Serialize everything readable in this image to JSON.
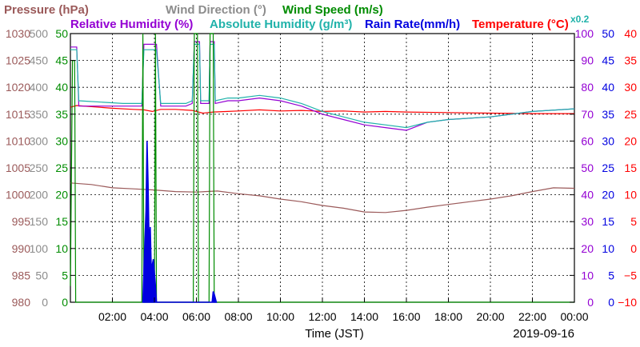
{
  "chart_data": {
    "type": "line",
    "date_label": "2019-09-16",
    "xlabel": "Time (JST)",
    "legend": [
      {
        "text": "Pressure (hPa)",
        "color": "#9b5a5a"
      },
      {
        "text": "Wind Direction (°)",
        "color": "#8c8c8c"
      },
      {
        "text": "Wind Speed (m/s)",
        "color": "#008c00"
      },
      {
        "text": "Relative Humidity (%)",
        "color": "#9400d3"
      },
      {
        "text": "Absolute Humidity (g/m³)",
        "color": "#20b2aa"
      },
      {
        "text": "Rain Rate(mm/h)",
        "color": "#0000e0"
      },
      {
        "text": "Temperature (°C)",
        "color": "#ff0000"
      },
      {
        "text": "x0.2",
        "color": "#20b2aa"
      }
    ],
    "x_ticks": [
      "02:00",
      "04:00",
      "06:00",
      "08:00",
      "10:00",
      "12:00",
      "14:00",
      "16:00",
      "18:00",
      "20:00",
      "22:00",
      "00:00"
    ],
    "x_tick_hours": [
      2,
      4,
      6,
      8,
      10,
      12,
      14,
      16,
      18,
      20,
      22,
      24
    ],
    "xlim": [
      0,
      24
    ],
    "axes": {
      "pressure": {
        "ticks": [
          "1030",
          "1025",
          "1020",
          "1015",
          "1010",
          "1005",
          "1000",
          "995",
          "990",
          "985",
          "980"
        ],
        "ylim": [
          980,
          1030
        ],
        "color": "#9b5a5a"
      },
      "wind_direction": {
        "ticks": [
          "500",
          "450",
          "400",
          "350",
          "300",
          "250",
          "200",
          "150",
          "100",
          "50",
          "0"
        ],
        "ylim": [
          0,
          500
        ],
        "color": "#8c8c8c"
      },
      "wind_speed": {
        "ticks": [
          "50",
          "45",
          "40",
          "35",
          "30",
          "25",
          "20",
          "15",
          "10",
          "5",
          "0"
        ],
        "ylim": [
          0,
          50
        ],
        "color": "#008c00"
      },
      "humidity": {
        "ticks": [
          "100",
          "90",
          "80",
          "70",
          "60",
          "50",
          "40",
          "30",
          "20",
          "10",
          "0"
        ],
        "ylim": [
          0,
          100
        ],
        "color": "#9400d3"
      },
      "rain_rate": {
        "ticks": [
          "50",
          "45",
          "40",
          "35",
          "30",
          "25",
          "20",
          "15",
          "10",
          "5",
          "0"
        ],
        "ylim": [
          0,
          50
        ],
        "color": "#0000e0"
      },
      "temperature": {
        "ticks": [
          "40",
          "35",
          "30",
          "25",
          "20",
          "15",
          "10",
          "5",
          "0",
          "−5",
          "−10"
        ],
        "ylim": [
          -10,
          40
        ],
        "color": "#ff0000"
      }
    },
    "series": [
      {
        "key": "temperature",
        "color": "#ff0000",
        "axis": "temperature",
        "points": [
          [
            0,
            26.3
          ],
          [
            0.3,
            26.6
          ],
          [
            1.0,
            26.4
          ],
          [
            2.0,
            26.1
          ],
          [
            3.0,
            25.9
          ],
          [
            3.5,
            25.8
          ],
          [
            3.9,
            25.5
          ],
          [
            4.3,
            25.9
          ],
          [
            5.0,
            25.9
          ],
          [
            5.8,
            25.7
          ],
          [
            6.3,
            25.2
          ],
          [
            6.8,
            25.4
          ],
          [
            7.5,
            25.5
          ],
          [
            8,
            25.6
          ],
          [
            9,
            25.8
          ],
          [
            10,
            25.6
          ],
          [
            11,
            25.7
          ],
          [
            12,
            25.5
          ],
          [
            13,
            25.6
          ],
          [
            14,
            25.4
          ],
          [
            15,
            25.5
          ],
          [
            16,
            25.4
          ],
          [
            18,
            25.3
          ],
          [
            20,
            25.2
          ],
          [
            22,
            25.1
          ],
          [
            24,
            25.1
          ]
        ]
      },
      {
        "key": "pressure",
        "color": "#9b5a5a",
        "axis": "pressure",
        "points": [
          [
            0,
            1002.2
          ],
          [
            1,
            1001.9
          ],
          [
            2,
            1001.3
          ],
          [
            3,
            1001.1
          ],
          [
            4,
            1000.9
          ],
          [
            5,
            1000.6
          ],
          [
            6,
            1000.5
          ],
          [
            7,
            1000.7
          ],
          [
            8,
            1000.2
          ],
          [
            9,
            999.8
          ],
          [
            10,
            999.2
          ],
          [
            11,
            998.7
          ],
          [
            12,
            998.0
          ],
          [
            13,
            997.5
          ],
          [
            14,
            996.8
          ],
          [
            15,
            996.7
          ],
          [
            16,
            997.1
          ],
          [
            17,
            997.7
          ],
          [
            18,
            998.2
          ],
          [
            19,
            998.7
          ],
          [
            20,
            999.2
          ],
          [
            21,
            999.8
          ],
          [
            22,
            1000.6
          ],
          [
            23,
            1001.3
          ],
          [
            24,
            1001.2
          ]
        ]
      },
      {
        "key": "relative_humidity",
        "color": "#9400d3",
        "axis": "humidity",
        "points": [
          [
            0,
            95
          ],
          [
            0.3,
            95
          ],
          [
            0.4,
            73
          ],
          [
            2.5,
            73
          ],
          [
            3.4,
            73
          ],
          [
            3.5,
            96
          ],
          [
            4.1,
            96
          ],
          [
            4.3,
            73
          ],
          [
            5.5,
            73
          ],
          [
            5.8,
            74
          ],
          [
            5.9,
            97
          ],
          [
            6.15,
            97
          ],
          [
            6.2,
            74
          ],
          [
            6.6,
            74
          ],
          [
            6.65,
            97
          ],
          [
            6.85,
            97
          ],
          [
            6.9,
            74
          ],
          [
            7.5,
            75
          ],
          [
            8,
            75
          ],
          [
            9,
            76
          ],
          [
            10,
            75
          ],
          [
            11,
            73
          ],
          [
            12,
            70
          ],
          [
            13,
            68
          ],
          [
            14,
            66
          ],
          [
            15,
            65
          ],
          [
            16,
            64
          ],
          [
            17,
            67
          ],
          [
            18,
            68
          ],
          [
            20,
            69
          ],
          [
            22,
            71
          ],
          [
            24,
            72
          ]
        ]
      },
      {
        "key": "absolute_humidity",
        "color": "#20b2aa",
        "axis": "humidity",
        "points": [
          [
            0,
            94
          ],
          [
            0.3,
            94
          ],
          [
            0.4,
            75
          ],
          [
            2.5,
            74
          ],
          [
            3.4,
            74
          ],
          [
            3.5,
            94
          ],
          [
            4.1,
            94
          ],
          [
            4.3,
            74
          ],
          [
            5.5,
            74
          ],
          [
            5.8,
            75
          ],
          [
            5.9,
            96
          ],
          [
            6.15,
            96
          ],
          [
            6.2,
            75
          ],
          [
            6.6,
            75
          ],
          [
            6.65,
            96
          ],
          [
            6.85,
            96
          ],
          [
            6.9,
            75
          ],
          [
            7.5,
            76
          ],
          [
            8,
            76
          ],
          [
            9,
            77
          ],
          [
            10,
            76
          ],
          [
            11,
            74
          ],
          [
            12,
            71
          ],
          [
            13,
            69
          ],
          [
            14,
            67
          ],
          [
            15,
            66
          ],
          [
            16,
            65
          ],
          [
            17,
            67
          ],
          [
            18,
            68
          ],
          [
            20,
            69
          ],
          [
            22,
            71
          ],
          [
            24,
            72
          ]
        ]
      },
      {
        "key": "rain_rate",
        "color": "#0000e0",
        "axis": "rain_rate",
        "points": [
          [
            3.45,
            0
          ],
          [
            3.5,
            6
          ],
          [
            3.6,
            17
          ],
          [
            3.65,
            30
          ],
          [
            3.7,
            22
          ],
          [
            3.75,
            10
          ],
          [
            3.8,
            14
          ],
          [
            3.85,
            6
          ],
          [
            3.95,
            8
          ],
          [
            4.05,
            3
          ],
          [
            4.1,
            0
          ],
          [
            6.75,
            0
          ],
          [
            6.8,
            2
          ],
          [
            6.85,
            1.5
          ],
          [
            6.95,
            0
          ]
        ]
      },
      {
        "key": "wind_speed",
        "color": "#008c00",
        "axis": "wind_speed",
        "points": [
          [
            0,
            3
          ],
          [
            0.1,
            45
          ],
          [
            0.2,
            45
          ],
          [
            0.25,
            0
          ],
          [
            3.4,
            0
          ],
          [
            3.45,
            50
          ],
          [
            3.5,
            0
          ],
          [
            4.0,
            0
          ],
          [
            4.05,
            50
          ],
          [
            4.1,
            0
          ],
          [
            5.85,
            0
          ],
          [
            5.9,
            50
          ],
          [
            6.05,
            50
          ],
          [
            6.1,
            0
          ],
          [
            6.6,
            0
          ],
          [
            6.65,
            50
          ],
          [
            6.8,
            50
          ],
          [
            6.85,
            0
          ],
          [
            24,
            0
          ]
        ]
      }
    ]
  }
}
